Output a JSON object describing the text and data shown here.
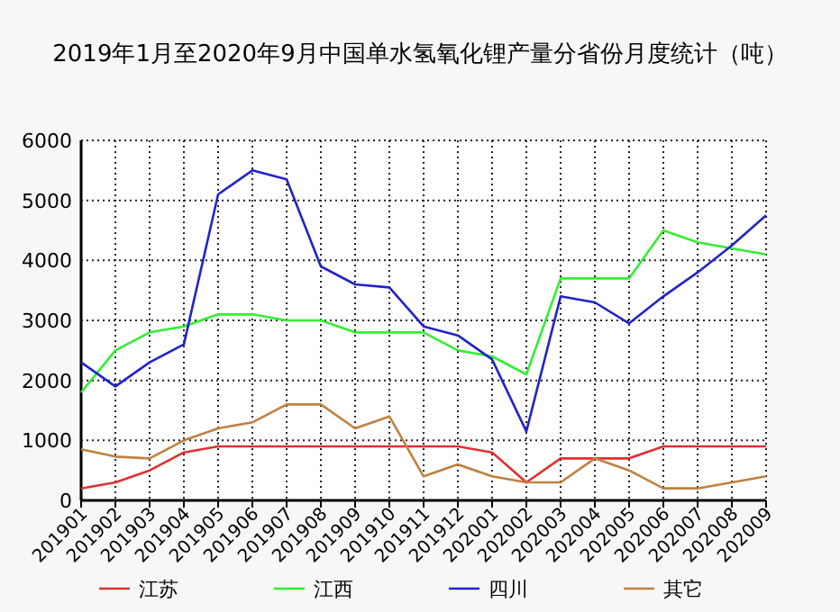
{
  "chart_data": {
    "type": "line",
    "title": "2019年1月至2020年9月中国单水氢氧化锂产量分省份月度统计（吨）",
    "categories": [
      "201901",
      "201902",
      "201903",
      "201904",
      "201905",
      "201906",
      "201907",
      "201908",
      "201909",
      "201910",
      "201911",
      "201912",
      "202001",
      "202002",
      "202003",
      "202004",
      "202005",
      "202006",
      "202007",
      "202008",
      "202009"
    ],
    "series": [
      {
        "name": "江苏",
        "color": "#e03030",
        "values": [
          200,
          300,
          500,
          800,
          900,
          900,
          900,
          900,
          900,
          900,
          900,
          900,
          800,
          300,
          700,
          700,
          700,
          900,
          900,
          900,
          900
        ]
      },
      {
        "name": "江西",
        "color": "#33ee33",
        "values": [
          1800,
          2500,
          2800,
          2900,
          3100,
          3100,
          3000,
          3000,
          2800,
          2800,
          2800,
          2500,
          2400,
          2100,
          3700,
          3700,
          3700,
          4500,
          4300,
          4200,
          4100
        ]
      },
      {
        "name": "四川",
        "color": "#2222cc",
        "values": [
          2300,
          1900,
          2300,
          2600,
          5100,
          5500,
          5350,
          3900,
          3600,
          3550,
          2900,
          2750,
          2350,
          1150,
          3400,
          3300,
          2950,
          3400,
          3800,
          4250,
          4750
        ]
      },
      {
        "name": "其它",
        "color": "#c08040",
        "values": [
          850,
          730,
          700,
          1000,
          1200,
          1300,
          1600,
          1600,
          1200,
          1400,
          400,
          600,
          400,
          300,
          300,
          700,
          500,
          200,
          200,
          300,
          400
        ]
      }
    ],
    "ylim": [
      0,
      6000
    ],
    "yticks": [
      0,
      1000,
      2000,
      3000,
      4000,
      5000,
      6000
    ],
    "grid": true,
    "legend": "bottom",
    "marker": "none",
    "line_style": "solid"
  }
}
